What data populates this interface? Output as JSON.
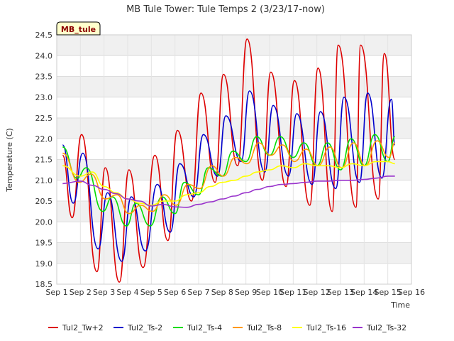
{
  "chart_data": {
    "type": "line",
    "title": "MB Tule Tower: Tule Temps 2 (3/23/17-now)",
    "xlabel": "Time",
    "ylabel": "Temperature (C)",
    "station_label": "MB_tule",
    "xlim": [
      1,
      16
    ],
    "ylim": [
      18.5,
      24.5
    ],
    "x_ticks": [
      1,
      2,
      3,
      4,
      5,
      6,
      7,
      8,
      9,
      10,
      11,
      12,
      13,
      14,
      15,
      16
    ],
    "x_tick_labels": [
      "Sep 1",
      "Sep 2",
      "Sep 3",
      "Sep 4",
      "Sep 5",
      "Sep 6",
      "Sep 7",
      "Sep 8",
      "Sep 9",
      "Sep 10",
      "Sep 11",
      "Sep 12",
      "Sep 13",
      "Sep 14",
      "Sep 15",
      "Sep 16"
    ],
    "y_ticks": [
      18.5,
      19.0,
      19.5,
      20.0,
      20.5,
      21.0,
      21.5,
      22.0,
      22.5,
      23.0,
      23.5,
      24.0,
      24.5
    ],
    "y_tick_labels": [
      "18.5",
      "19.0",
      "19.5",
      "20.0",
      "20.5",
      "21.0",
      "21.5",
      "22.0",
      "22.5",
      "23.0",
      "23.5",
      "24.0",
      "24.5"
    ],
    "grid": true,
    "legend_position": "bottom",
    "series": [
      {
        "name": "Tul2_Tw+2",
        "color": "#dd0000",
        "x": [
          1.25,
          1.65,
          2.05,
          2.7,
          3.05,
          3.65,
          4.05,
          4.65,
          5.15,
          5.7,
          6.1,
          6.7,
          7.1,
          7.7,
          8.05,
          8.65,
          9.05,
          9.7,
          10.05,
          10.7,
          11.05,
          11.7,
          12.05,
          12.65,
          12.9,
          13.65,
          13.85,
          14.6,
          14.85,
          15.3
        ],
        "y": [
          21.6,
          20.1,
          22.1,
          18.8,
          21.3,
          18.55,
          21.25,
          18.9,
          21.6,
          19.55,
          22.2,
          20.5,
          23.1,
          20.95,
          23.55,
          21.35,
          24.4,
          21.0,
          23.6,
          20.85,
          23.4,
          20.4,
          23.7,
          20.25,
          24.25,
          20.35,
          24.25,
          20.55,
          24.05,
          21.5
        ]
      },
      {
        "name": "Tul2_Ts-2",
        "color": "#0000cc",
        "x": [
          1.25,
          1.7,
          2.1,
          2.75,
          3.15,
          3.75,
          4.15,
          4.75,
          5.25,
          5.8,
          6.2,
          6.8,
          7.2,
          7.8,
          8.15,
          8.8,
          9.15,
          9.8,
          10.15,
          10.8,
          11.15,
          11.8,
          12.15,
          12.8,
          13.15,
          13.8,
          14.15,
          14.75,
          15.15,
          15.3
        ],
        "y": [
          21.85,
          20.45,
          21.65,
          19.35,
          20.7,
          19.05,
          20.6,
          19.3,
          20.9,
          19.75,
          21.4,
          20.6,
          22.1,
          21.1,
          22.55,
          21.45,
          23.15,
          21.2,
          22.8,
          21.1,
          22.6,
          20.9,
          22.65,
          20.8,
          23.0,
          20.95,
          23.1,
          21.05,
          22.95,
          21.85
        ]
      },
      {
        "name": "Tul2_Ts-4",
        "color": "#00dd00",
        "x": [
          1.25,
          1.85,
          2.25,
          2.95,
          3.35,
          3.95,
          4.35,
          4.95,
          5.45,
          6.0,
          6.4,
          7.0,
          7.4,
          8.0,
          8.45,
          9.0,
          9.45,
          10.0,
          10.45,
          11.0,
          11.45,
          12.0,
          12.45,
          13.0,
          13.45,
          14.0,
          14.45,
          15.0,
          15.3
        ],
        "y": [
          21.8,
          21.05,
          21.3,
          20.25,
          20.6,
          19.9,
          20.45,
          19.9,
          20.6,
          20.2,
          20.95,
          20.65,
          21.3,
          21.1,
          21.7,
          21.45,
          22.05,
          21.6,
          22.05,
          21.55,
          21.9,
          21.35,
          21.9,
          21.25,
          22.0,
          21.35,
          22.1,
          21.45,
          22.05
        ]
      },
      {
        "name": "Tul2_Ts-8",
        "color": "#ff9900",
        "x": [
          1.25,
          1.95,
          2.45,
          3.05,
          3.55,
          4.05,
          4.55,
          5.05,
          5.55,
          6.05,
          6.55,
          7.05,
          7.55,
          8.05,
          8.55,
          9.05,
          9.55,
          10.05,
          10.55,
          11.05,
          11.55,
          12.05,
          12.55,
          13.05,
          13.55,
          14.05,
          14.55,
          15.05,
          15.3
        ],
        "y": [
          21.65,
          20.95,
          21.15,
          20.55,
          20.65,
          20.2,
          20.4,
          20.25,
          20.65,
          20.4,
          20.9,
          20.8,
          21.35,
          21.1,
          21.55,
          21.4,
          21.9,
          21.6,
          21.85,
          21.45,
          21.75,
          21.35,
          21.8,
          21.3,
          21.9,
          21.35,
          21.95,
          21.55,
          21.9
        ]
      },
      {
        "name": "Tul2_Ts-16",
        "color": "#ffff00",
        "x": [
          1.25,
          2.0,
          2.5,
          3.0,
          3.5,
          4.0,
          4.5,
          5.0,
          5.5,
          6.0,
          6.5,
          7.0,
          7.5,
          8.0,
          8.5,
          9.0,
          9.5,
          10.0,
          10.5,
          11.0,
          11.5,
          12.0,
          12.5,
          13.0,
          13.5,
          14.0,
          14.5,
          15.0,
          15.3
        ],
        "y": [
          21.35,
          21.1,
          21.2,
          20.85,
          20.7,
          20.55,
          20.45,
          20.4,
          20.5,
          20.5,
          20.65,
          20.7,
          20.85,
          20.95,
          21.0,
          21.1,
          21.2,
          21.25,
          21.35,
          21.3,
          21.4,
          21.35,
          21.35,
          21.3,
          21.4,
          21.35,
          21.45,
          21.45,
          21.4
        ]
      },
      {
        "name": "Tul2_Ts-32",
        "color": "#9933cc",
        "x": [
          1.25,
          2.0,
          2.5,
          3.0,
          3.5,
          4.0,
          4.5,
          5.0,
          5.5,
          6.0,
          6.5,
          7.0,
          7.5,
          8.0,
          8.5,
          9.0,
          9.5,
          10.0,
          10.5,
          11.0,
          11.5,
          12.0,
          12.5,
          13.0,
          13.5,
          14.0,
          14.5,
          15.0,
          15.3
        ],
        "y": [
          20.92,
          20.98,
          20.88,
          20.78,
          20.68,
          20.55,
          20.5,
          20.38,
          20.42,
          20.36,
          20.35,
          20.42,
          20.48,
          20.55,
          20.62,
          20.7,
          20.78,
          20.85,
          20.9,
          20.92,
          20.95,
          20.98,
          20.98,
          21.0,
          21.0,
          21.02,
          21.05,
          21.1,
          21.1
        ]
      }
    ]
  }
}
